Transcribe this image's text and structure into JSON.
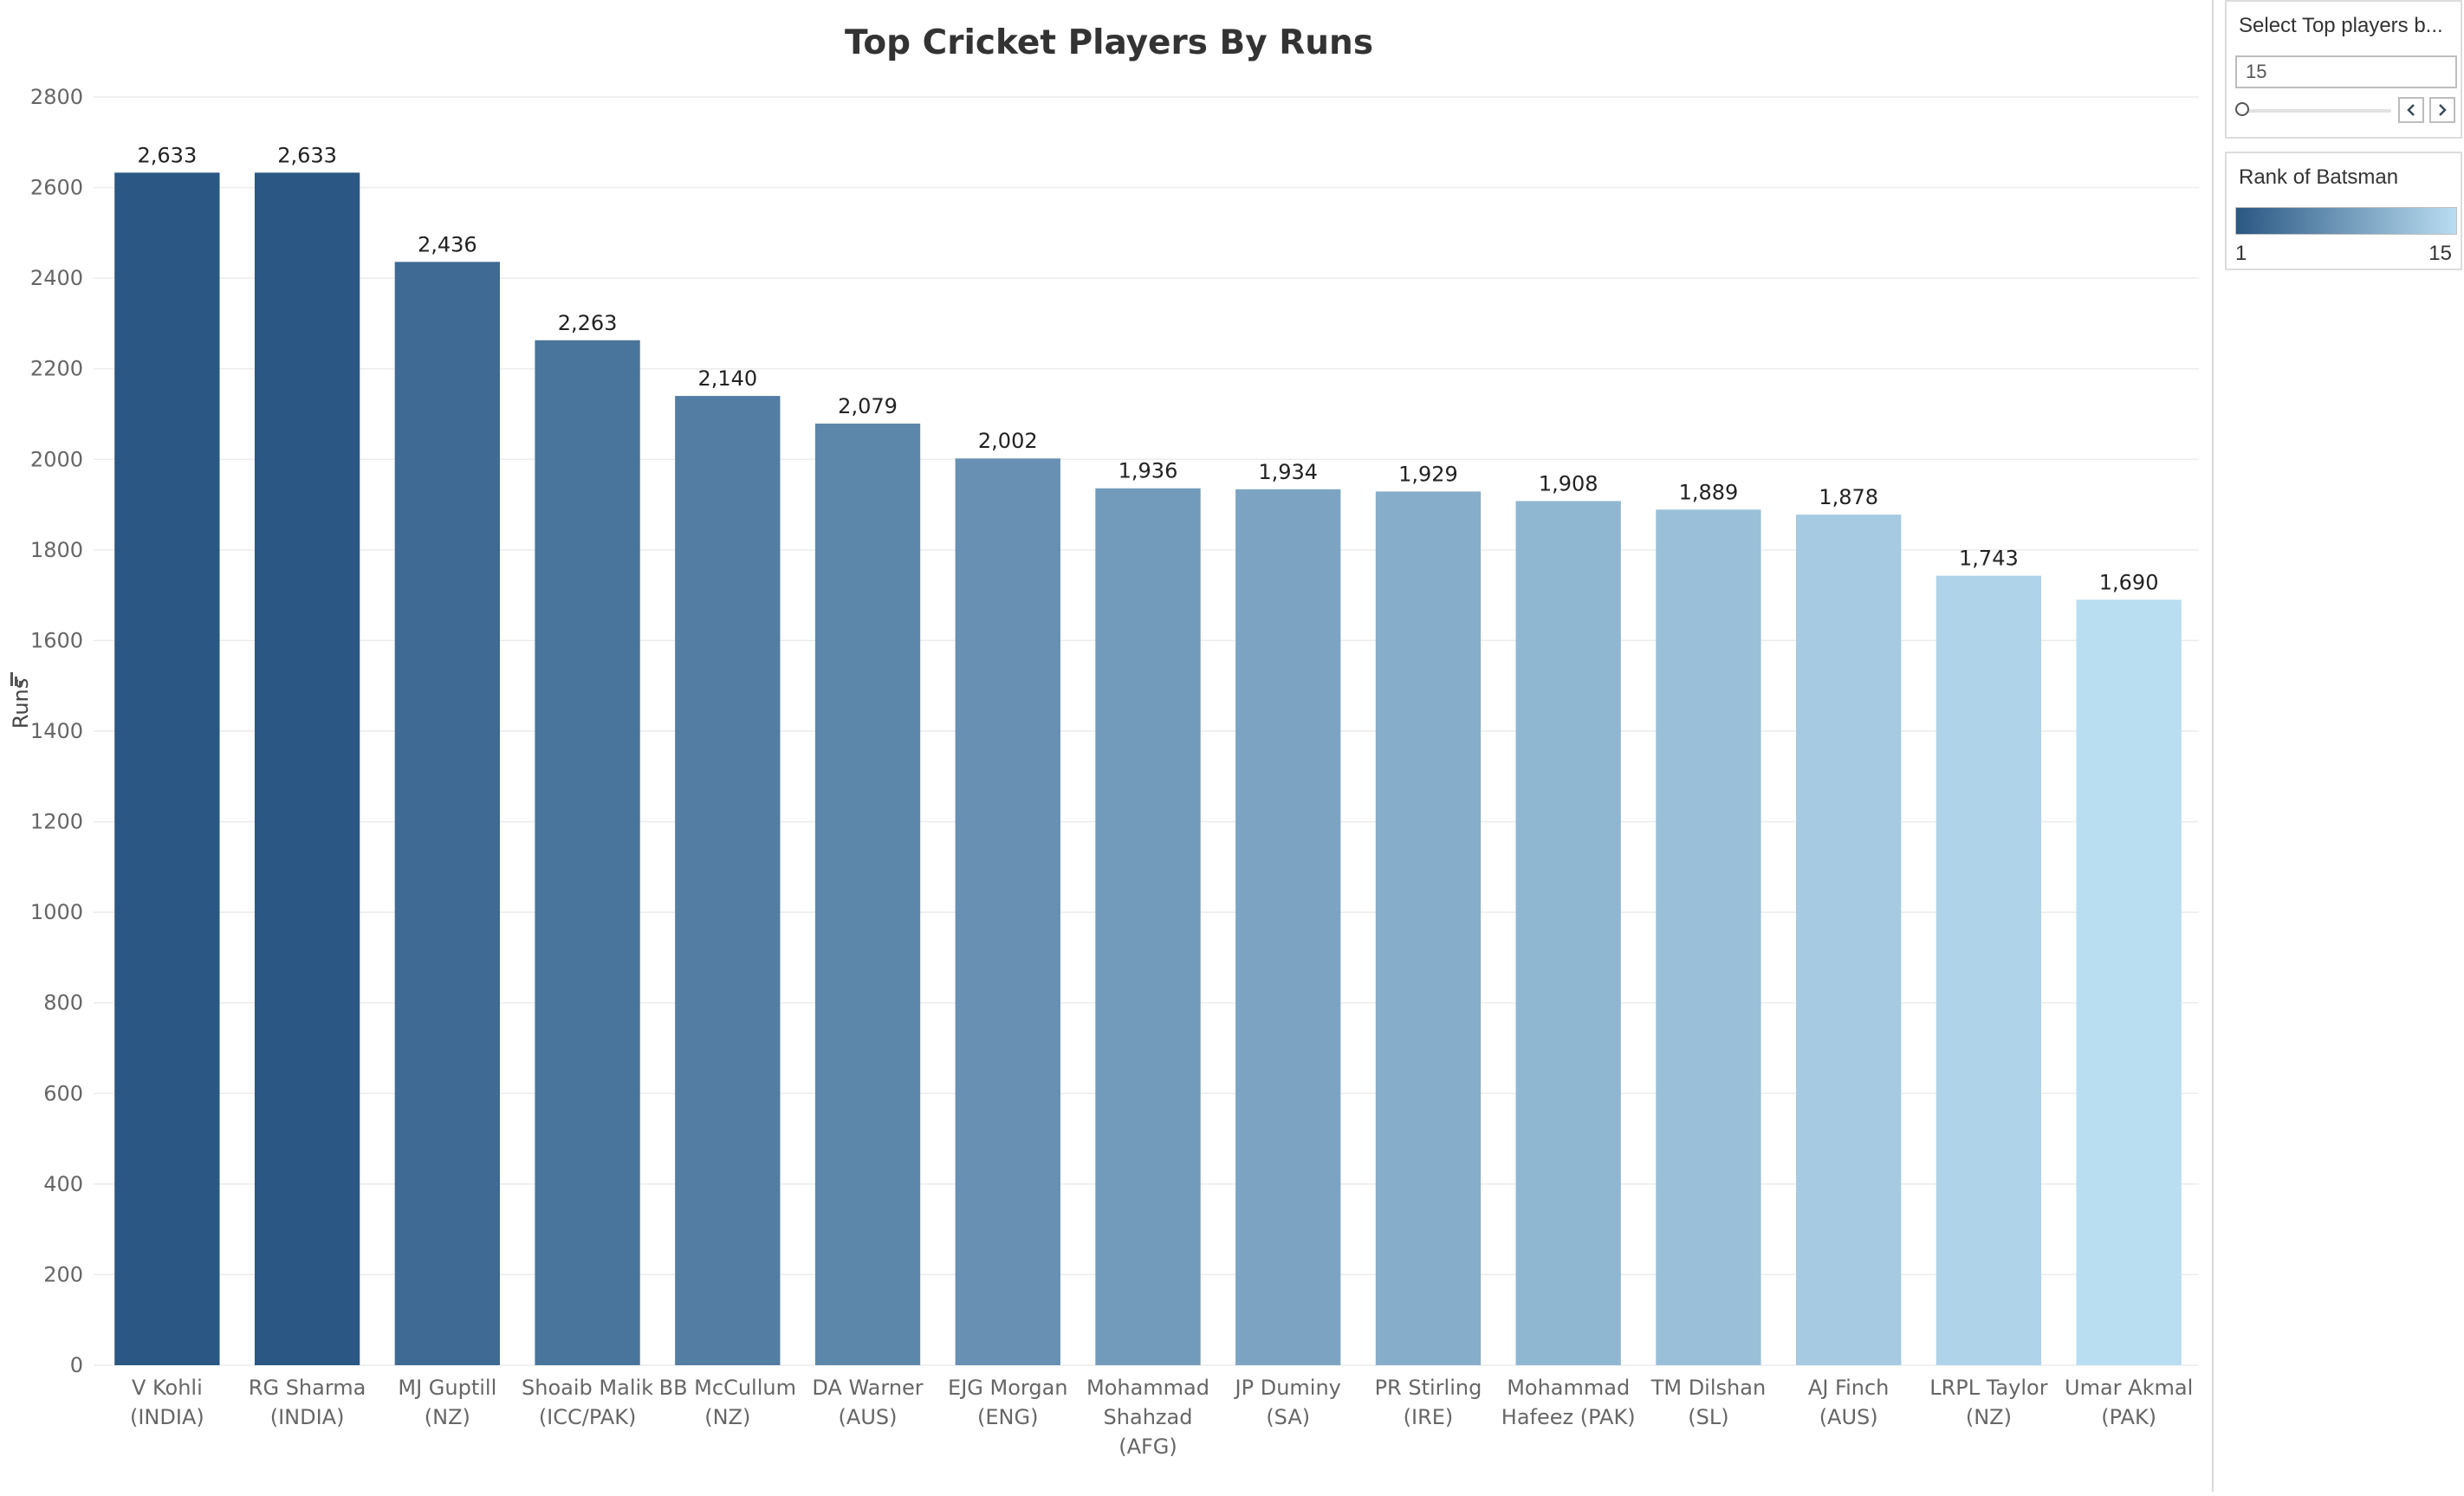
{
  "chart_data": {
    "type": "bar",
    "title": "Top Cricket Players By Runs",
    "xlabel": "",
    "ylabel": "Runs",
    "ylim": [
      0,
      2800
    ],
    "yticks": [
      0,
      200,
      400,
      600,
      800,
      1000,
      1200,
      1400,
      1600,
      1800,
      2000,
      2200,
      2400,
      2600,
      2800
    ],
    "grid": true,
    "categories": [
      [
        "V Kohli",
        "(INDIA)"
      ],
      [
        "RG Sharma",
        "(INDIA)"
      ],
      [
        "MJ Guptill",
        "(NZ)"
      ],
      [
        "Shoaib Malik",
        "(ICC/PAK)"
      ],
      [
        "BB McCullum",
        "(NZ)"
      ],
      [
        "DA Warner",
        "(AUS)"
      ],
      [
        "EJG Morgan",
        "(ENG)"
      ],
      [
        "Mohammad",
        "Shahzad",
        "(AFG)"
      ],
      [
        "JP Duminy",
        "(SA)"
      ],
      [
        "PR Stirling",
        "(IRE)"
      ],
      [
        "Mohammad",
        "Hafeez (PAK)"
      ],
      [
        "TM Dilshan",
        "(SL)"
      ],
      [
        "AJ Finch",
        "(AUS)"
      ],
      [
        "LRPL Taylor",
        "(NZ)"
      ],
      [
        "Umar Akmal",
        "(PAK)"
      ]
    ],
    "values": [
      2633,
      2633,
      2436,
      2263,
      2140,
      2079,
      2002,
      1936,
      1934,
      1929,
      1908,
      1889,
      1878,
      1743,
      1690
    ],
    "data_labels": [
      "2,633",
      "2,633",
      "2,436",
      "2,263",
      "2,140",
      "2,079",
      "2,002",
      "1,936",
      "1,934",
      "1,929",
      "1,908",
      "1,889",
      "1,878",
      "1,743",
      "1,690"
    ],
    "ranks": [
      1,
      1,
      3,
      4,
      5,
      6,
      7,
      8,
      9,
      10,
      11,
      12,
      13,
      14,
      15
    ],
    "color_scale": {
      "field": "Rank of Batsman",
      "min": 1,
      "max": 15,
      "start_color": "#2a5783",
      "end_color": "#b9ddf1"
    }
  },
  "parameter": {
    "title": "Select Top players b...",
    "value": "15",
    "slider_position": 0
  },
  "legend": {
    "title": "Rank of Batsman",
    "min_label": "1",
    "max_label": "15"
  }
}
